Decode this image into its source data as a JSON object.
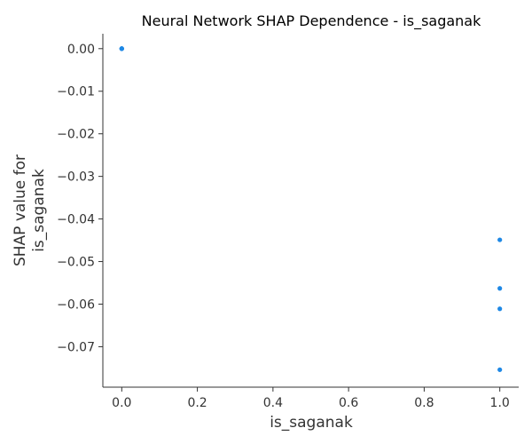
{
  "chart_data": {
    "type": "scatter",
    "title": "Neural Network SHAP Dependence - is_saganak",
    "xlabel": "is_saganak",
    "ylabel_lines": [
      "SHAP value for",
      "is_saganak"
    ],
    "xlim": [
      -0.05,
      1.05
    ],
    "ylim": [
      -0.0795,
      0.0035
    ],
    "xticks": [
      0.0,
      0.2,
      0.4,
      0.6,
      0.8,
      1.0
    ],
    "xtick_labels": [
      "0.0",
      "0.2",
      "0.4",
      "0.6",
      "0.8",
      "1.0"
    ],
    "yticks": [
      0.0,
      -0.01,
      -0.02,
      -0.03,
      -0.04,
      -0.05,
      -0.06,
      -0.07
    ],
    "ytick_labels": [
      "0.00",
      "−0.01",
      "−0.02",
      "−0.03",
      "−0.04",
      "−0.05",
      "−0.06",
      "−0.07"
    ],
    "grid": false,
    "point_color": "#1e88e5",
    "points": [
      {
        "x": 0.0,
        "y": 0.0
      },
      {
        "x": 0.0,
        "y": 0.0
      },
      {
        "x": 0.0,
        "y": 0.0
      },
      {
        "x": 0.0,
        "y": 0.0
      },
      {
        "x": 1.0,
        "y": -0.0449
      },
      {
        "x": 1.0,
        "y": -0.0563
      },
      {
        "x": 1.0,
        "y": -0.0611
      },
      {
        "x": 1.0,
        "y": -0.0754
      }
    ]
  }
}
